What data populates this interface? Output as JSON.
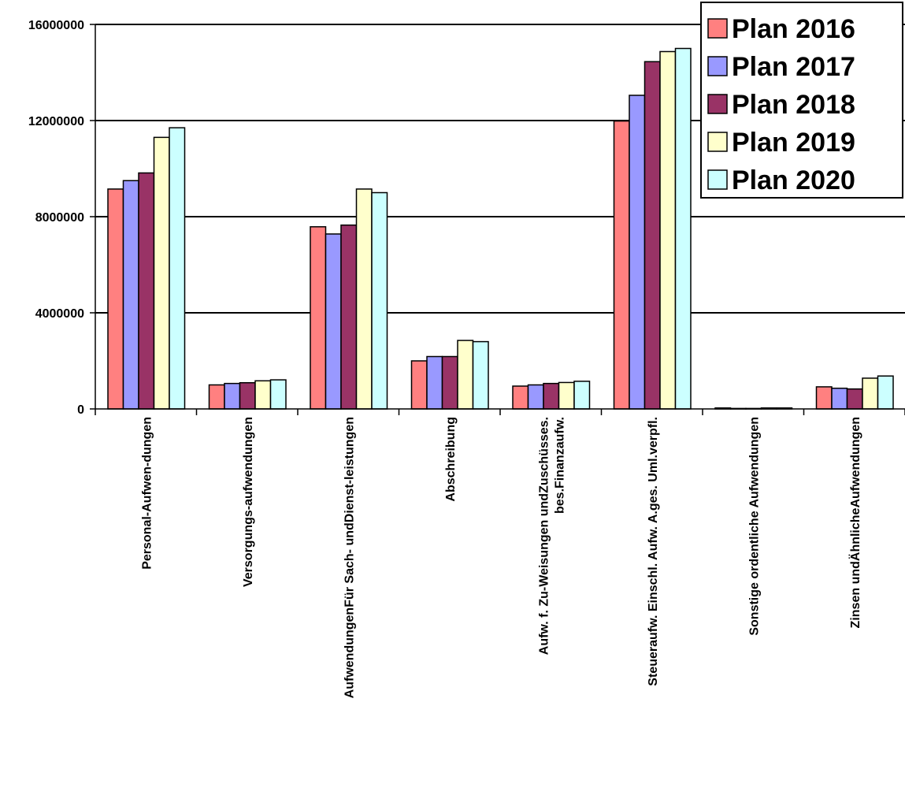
{
  "chart_data": {
    "type": "bar",
    "title": "",
    "xlabel": "",
    "ylabel": "",
    "ylim": [
      0,
      16000000
    ],
    "yticks": [
      0,
      4000000,
      8000000,
      12000000,
      16000000
    ],
    "ytick_labels": [
      "0",
      "4000000",
      "8000000",
      "12000000",
      "16000000"
    ],
    "grid": true,
    "legend_position": "top-right",
    "categories": [
      [
        "Personal-Aufwen-dungen"
      ],
      [
        "Versorgungs-aufwendungen"
      ],
      [
        "AufwendungenFür Sach- undDienst-leistungen"
      ],
      [
        "Abschreibung"
      ],
      [
        "Aufw. f. Zu-Weisungen undZuschüsses.",
        "bes.Finanzaufw."
      ],
      [
        "Steueraufw. Einschl. Aufw. A.ges. Uml.verpfl."
      ],
      [
        "Sonstige ordentliche Aufwendungen"
      ],
      [
        "Zinsen undÄhnlicheAufwendungen"
      ]
    ],
    "series": [
      {
        "name": "Plan 2016",
        "color": "#FF8080",
        "values": [
          9150000,
          1000000,
          7580000,
          2000000,
          950000,
          11980000,
          40000,
          920000
        ]
      },
      {
        "name": "Plan 2017",
        "color": "#9999FF",
        "values": [
          9500000,
          1060000,
          7280000,
          2180000,
          1000000,
          13050000,
          20000,
          860000
        ]
      },
      {
        "name": "Plan 2018",
        "color": "#993366",
        "values": [
          9820000,
          1090000,
          7650000,
          2180000,
          1060000,
          14450000,
          20000,
          830000
        ]
      },
      {
        "name": "Plan 2019",
        "color": "#FFFFCC",
        "values": [
          11300000,
          1170000,
          9150000,
          2850000,
          1100000,
          14870000,
          40000,
          1280000
        ]
      },
      {
        "name": "Plan 2020",
        "color": "#CCFFFF",
        "values": [
          11700000,
          1210000,
          9000000,
          2800000,
          1150000,
          15000000,
          40000,
          1370000
        ]
      }
    ]
  }
}
